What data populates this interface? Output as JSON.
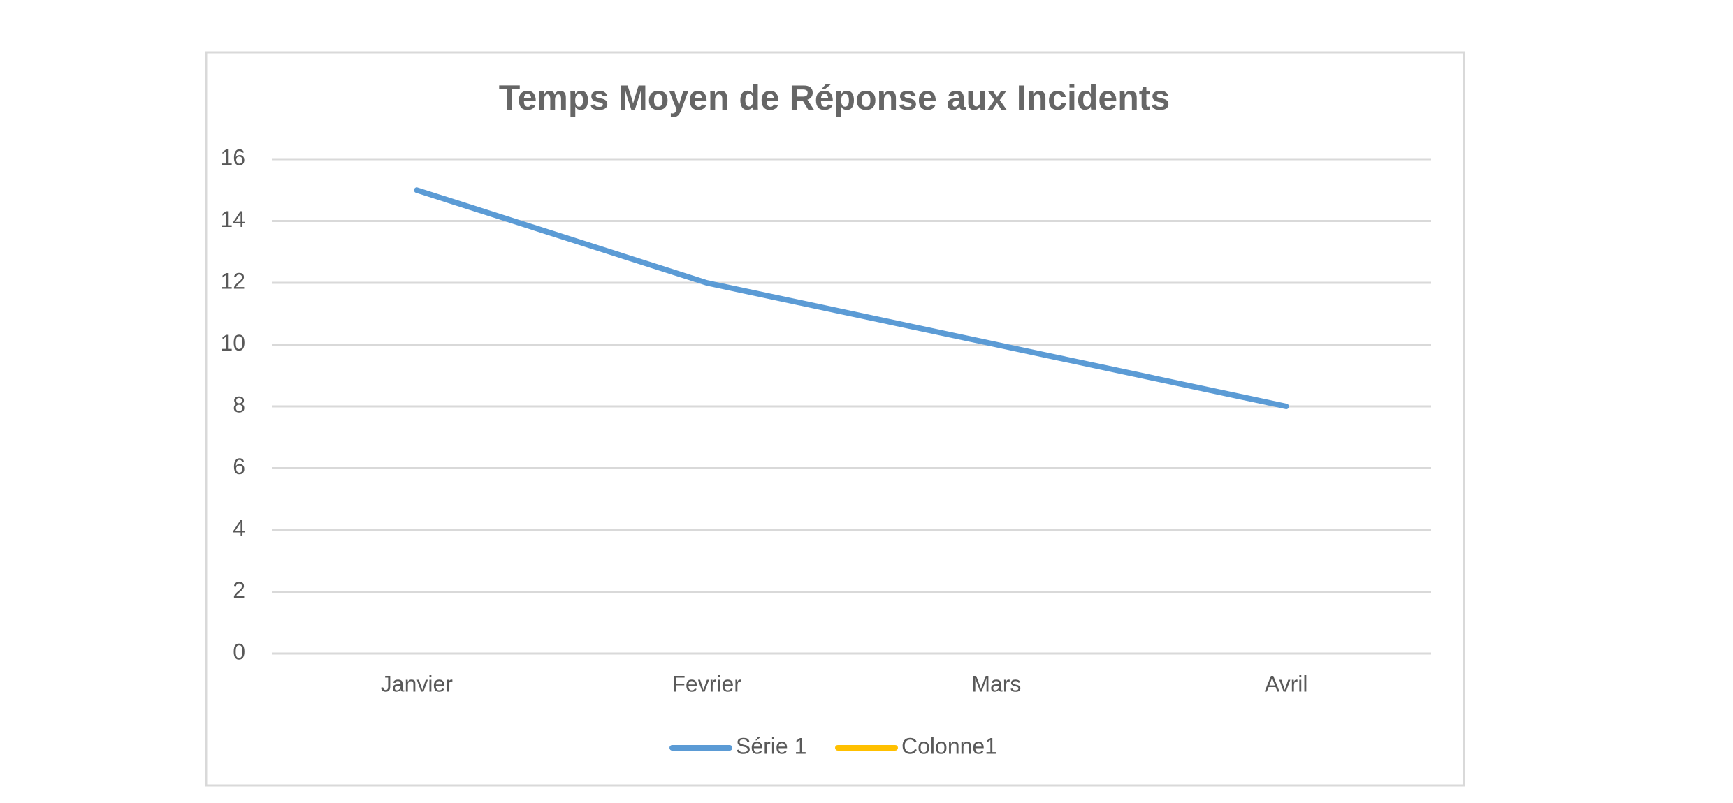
{
  "chart_data": {
    "type": "line",
    "title": "Temps Moyen de Réponse aux Incidents",
    "categories": [
      "Janvier",
      "Fevrier",
      "Mars",
      "Avril"
    ],
    "series": [
      {
        "name": "Série 1",
        "color": "#5b9bd5",
        "values": [
          15,
          12,
          10,
          8
        ]
      },
      {
        "name": "Colonne1",
        "color": "#ffc000",
        "values": [
          null,
          null,
          null,
          null
        ]
      }
    ],
    "ylim": [
      0,
      16
    ],
    "yticks": [
      0,
      2,
      4,
      6,
      8,
      10,
      12,
      14,
      16
    ],
    "grid": true,
    "legend": "bottom"
  }
}
